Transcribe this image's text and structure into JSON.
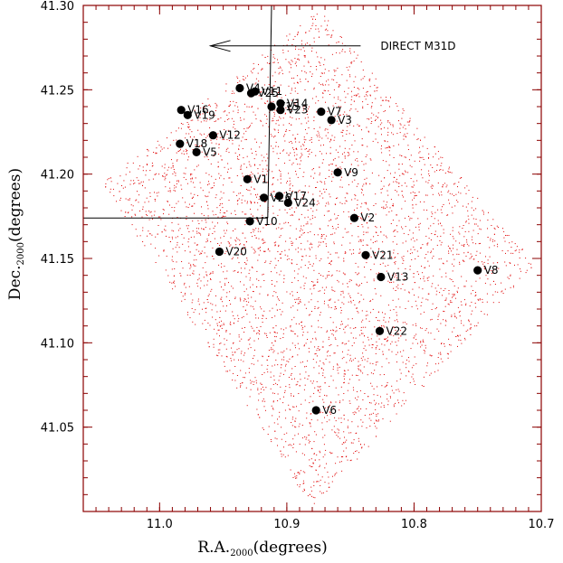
{
  "chart_data": {
    "type": "scatter",
    "xlabel": {
      "main": "R.A.",
      "sub": "2000",
      "unit": "(degrees)"
    },
    "ylabel": {
      "main": "Dec.",
      "sub": "2000",
      "unit": "(degrees)"
    },
    "xlim": [
      11.06,
      10.7
    ],
    "ylim": [
      41.0,
      41.3
    ],
    "x_ticks": [
      {
        "value": 11.0,
        "label": "11.0"
      },
      {
        "value": 10.9,
        "label": "10.9"
      },
      {
        "value": 10.8,
        "label": "10.8"
      },
      {
        "value": 10.7,
        "label": "10.7"
      }
    ],
    "y_ticks": [
      {
        "value": 41.05,
        "label": "41.05"
      },
      {
        "value": 41.1,
        "label": "41.10"
      },
      {
        "value": 41.15,
        "label": "41.15"
      },
      {
        "value": 41.2,
        "label": "41.20"
      },
      {
        "value": 41.25,
        "label": "41.25"
      },
      {
        "value": 41.3,
        "label": "41.30"
      }
    ],
    "frame_color": "#8b0000",
    "background_star_color": "#e00000",
    "variable_star_color": "#000000",
    "field_polygon": [
      [
        11.045,
        41.195
      ],
      [
        10.875,
        41.298
      ],
      [
        10.705,
        41.147
      ],
      [
        10.88,
        41.002
      ]
    ],
    "overlay_lines": [
      {
        "from": [
          10.912,
          41.3
        ],
        "to": [
          10.915,
          41.174
        ]
      },
      {
        "from": [
          11.06,
          41.174
        ],
        "to": [
          10.915,
          41.174
        ]
      }
    ],
    "arrow": {
      "from": [
        10.842,
        41.276
      ],
      "to": [
        10.96,
        41.276
      ],
      "label": "DIRECT M31D"
    },
    "variables": [
      {
        "name": "V1",
        "ra": 10.931,
        "dec": 41.197
      },
      {
        "name": "V2",
        "ra": 10.847,
        "dec": 41.174
      },
      {
        "name": "V3",
        "ra": 10.865,
        "dec": 41.232
      },
      {
        "name": "V4",
        "ra": 10.937,
        "dec": 41.251
      },
      {
        "name": "V5",
        "ra": 10.971,
        "dec": 41.213
      },
      {
        "name": "V6",
        "ra": 10.877,
        "dec": 41.06
      },
      {
        "name": "V7",
        "ra": 10.873,
        "dec": 41.237
      },
      {
        "name": "V8",
        "ra": 10.75,
        "dec": 41.143
      },
      {
        "name": "V9",
        "ra": 10.86,
        "dec": 41.201
      },
      {
        "name": "V10",
        "ra": 10.929,
        "dec": 41.172
      },
      {
        "name": "V11",
        "ra": 10.925,
        "dec": 41.249
      },
      {
        "name": "V12",
        "ra": 10.958,
        "dec": 41.223
      },
      {
        "name": "V13",
        "ra": 10.826,
        "dec": 41.139
      },
      {
        "name": "V14",
        "ra": 10.905,
        "dec": 41.242
      },
      {
        "name": "V15",
        "ra": 10.912,
        "dec": 41.24
      },
      {
        "name": "V16",
        "ra": 10.983,
        "dec": 41.238
      },
      {
        "name": "V17",
        "ra": 10.906,
        "dec": 41.187
      },
      {
        "name": "V18",
        "ra": 10.984,
        "dec": 41.218
      },
      {
        "name": "V19",
        "ra": 10.978,
        "dec": 41.235
      },
      {
        "name": "V20",
        "ra": 10.953,
        "dec": 41.154
      },
      {
        "name": "V21",
        "ra": 10.838,
        "dec": 41.152
      },
      {
        "name": "V22",
        "ra": 10.827,
        "dec": 41.107
      },
      {
        "name": "V23",
        "ra": 10.905,
        "dec": 41.238
      },
      {
        "name": "V24",
        "ra": 10.899,
        "dec": 41.183
      },
      {
        "name": "V25",
        "ra": 10.928,
        "dec": 41.248
      },
      {
        "name": "V26",
        "ra": 10.918,
        "dec": 41.186
      }
    ]
  }
}
